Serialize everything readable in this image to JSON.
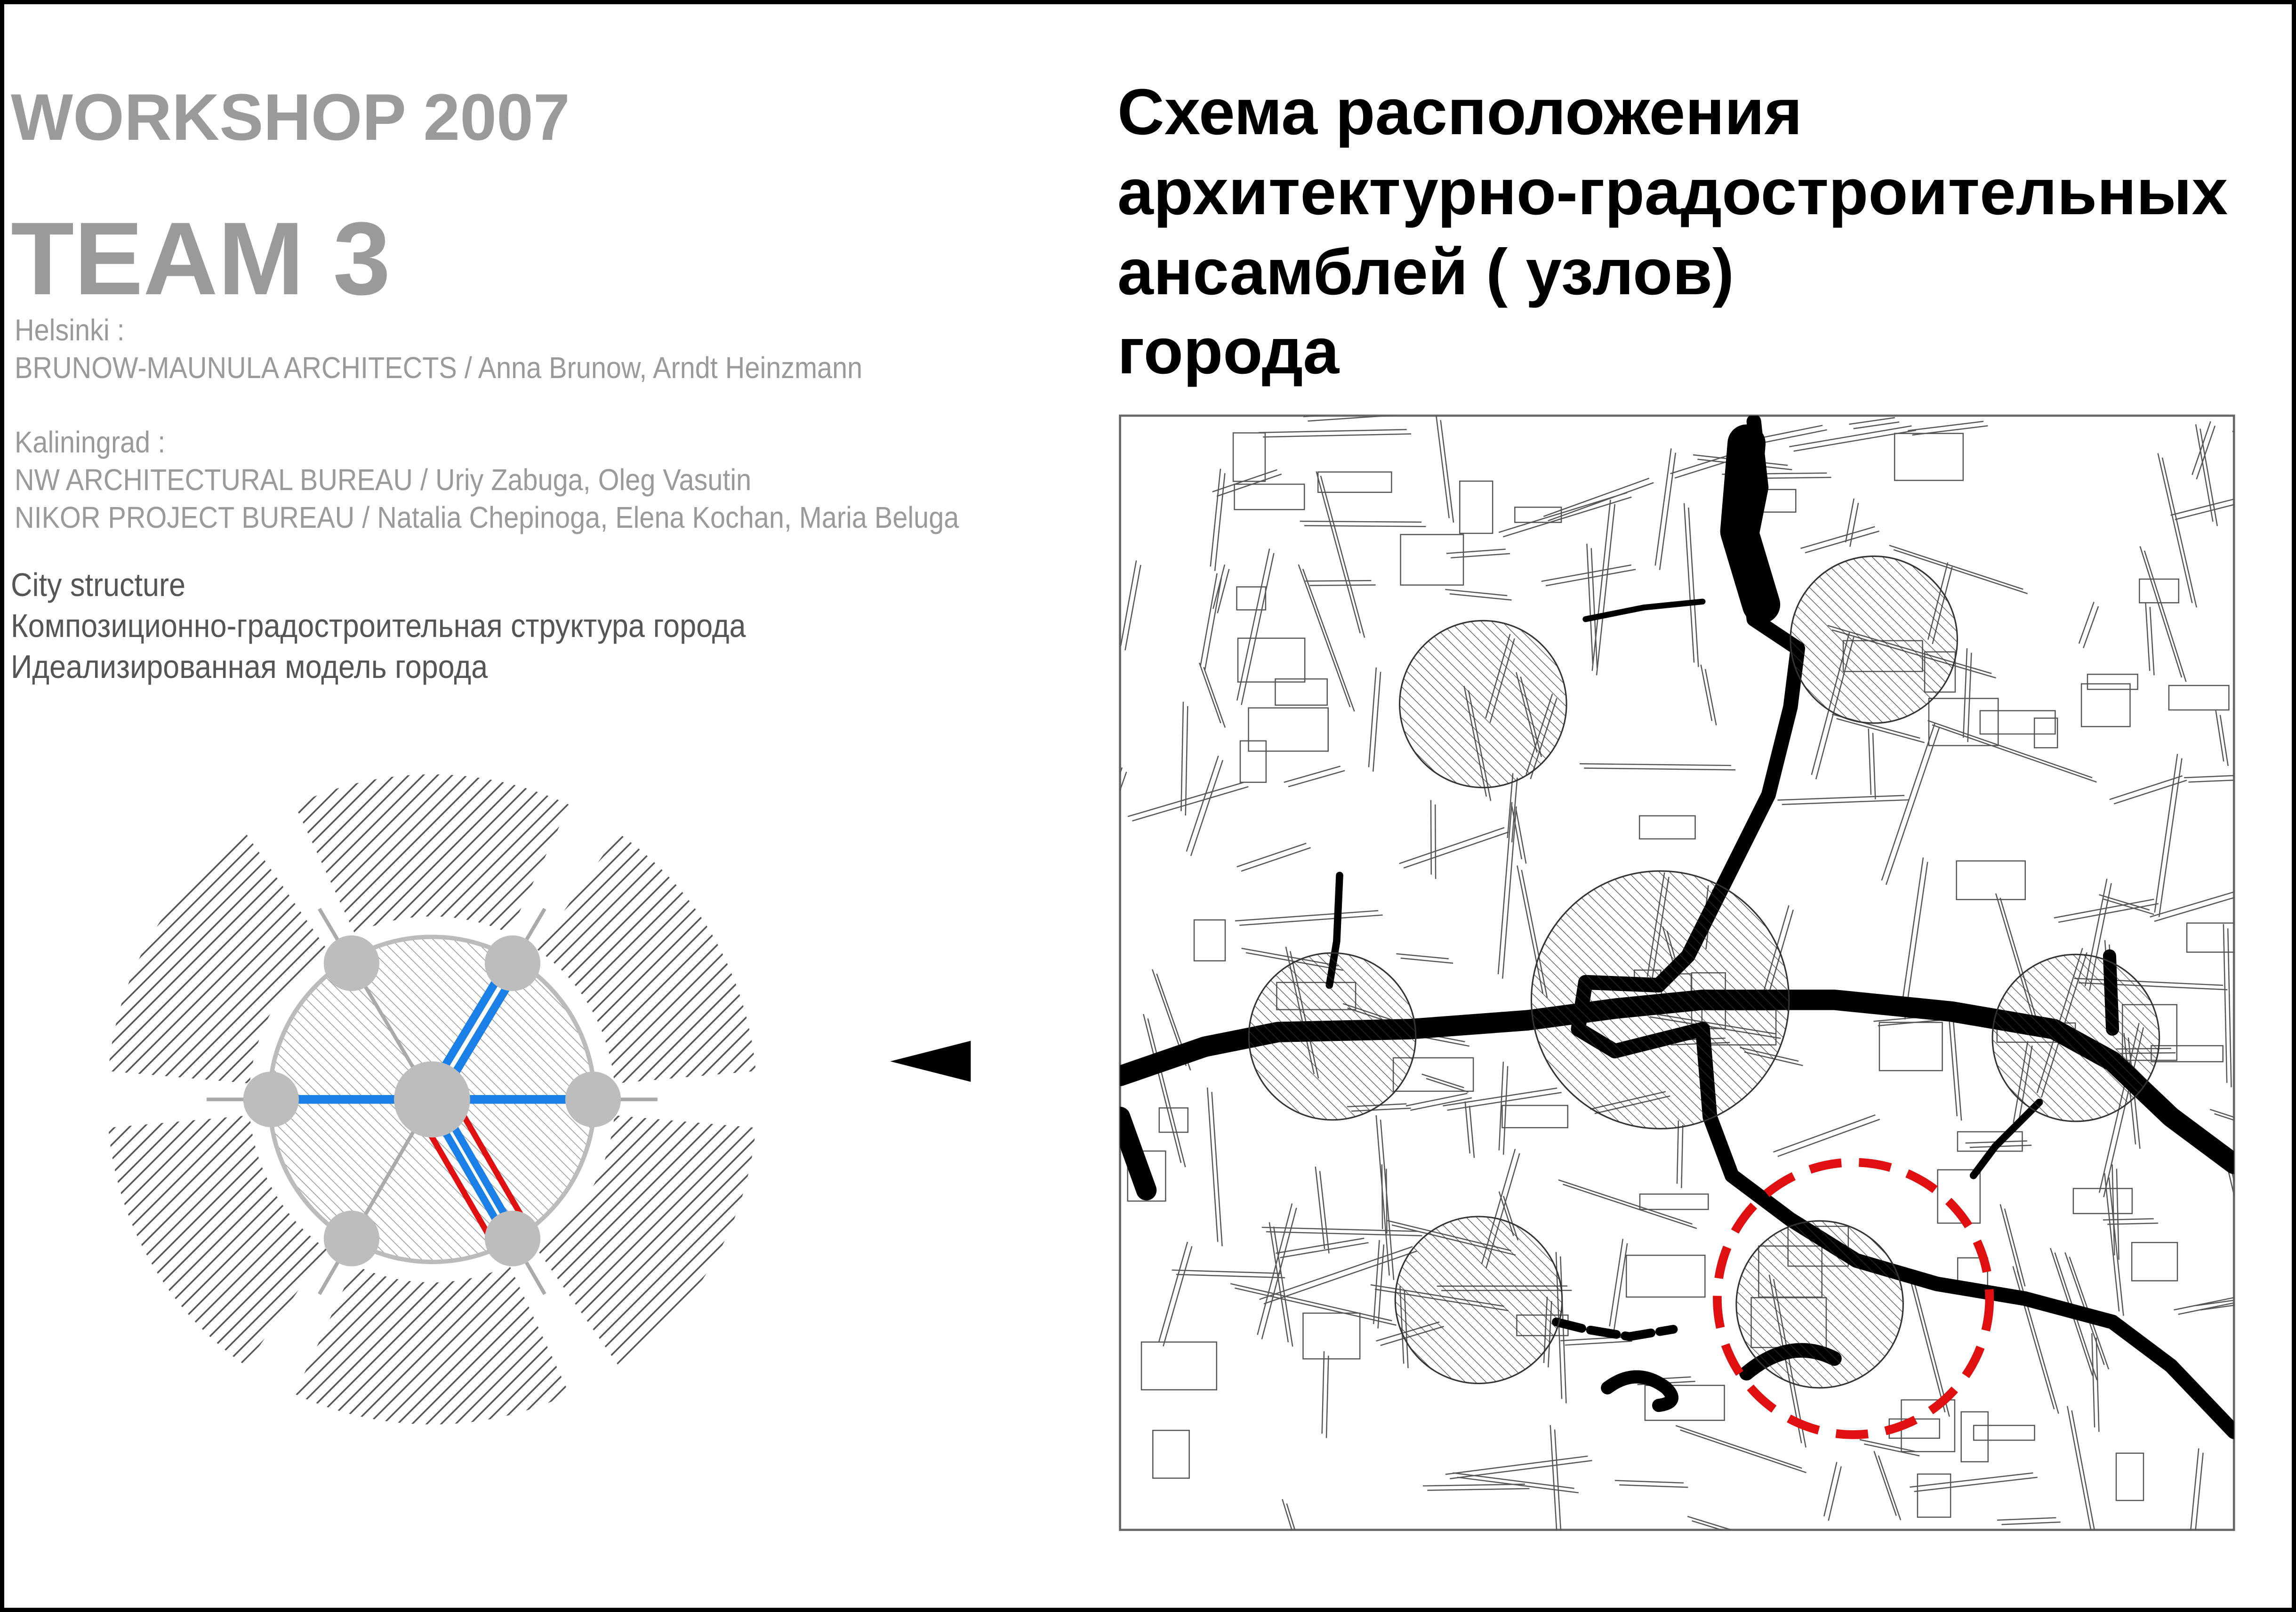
{
  "left_panel": {
    "workshop": "WORKSHOP 2007",
    "team": "TEAM 3",
    "helsinki_label": "Helsinki :",
    "helsinki_team": "BRUNOW-MAUNULA ARCHITECTS / Anna Brunow, Arndt Heinzmann",
    "kaliningrad_label": "Kaliningrad :",
    "kaliningrad_team_1": "NW ARCHITECTURAL BUREAU / Uriy Zabuga, Oleg Vasutin",
    "kaliningrad_team_2": "NIKOR PROJECT BUREAU / Natalia Chepinoga, Elena Kochan,  Maria Beluga",
    "topic_1": "City structure",
    "topic_2": "Композиционно-градостроительная структура города",
    "topic_3": "Идеализированная модель города"
  },
  "right_panel": {
    "title_lines": [
      "Схема расположения",
      "архитектурно-градостроительных",
      "ансамблей ( узлов)",
      "города"
    ]
  },
  "colors": {
    "accent_blue": "#1a7fe6",
    "highlight_red": "#e01010",
    "node_gray": "#bdbdbd",
    "hatch_gray": "#555555",
    "river_black": "#000000"
  },
  "icons": {
    "arrow": "triangle-left-arrow-icon"
  }
}
